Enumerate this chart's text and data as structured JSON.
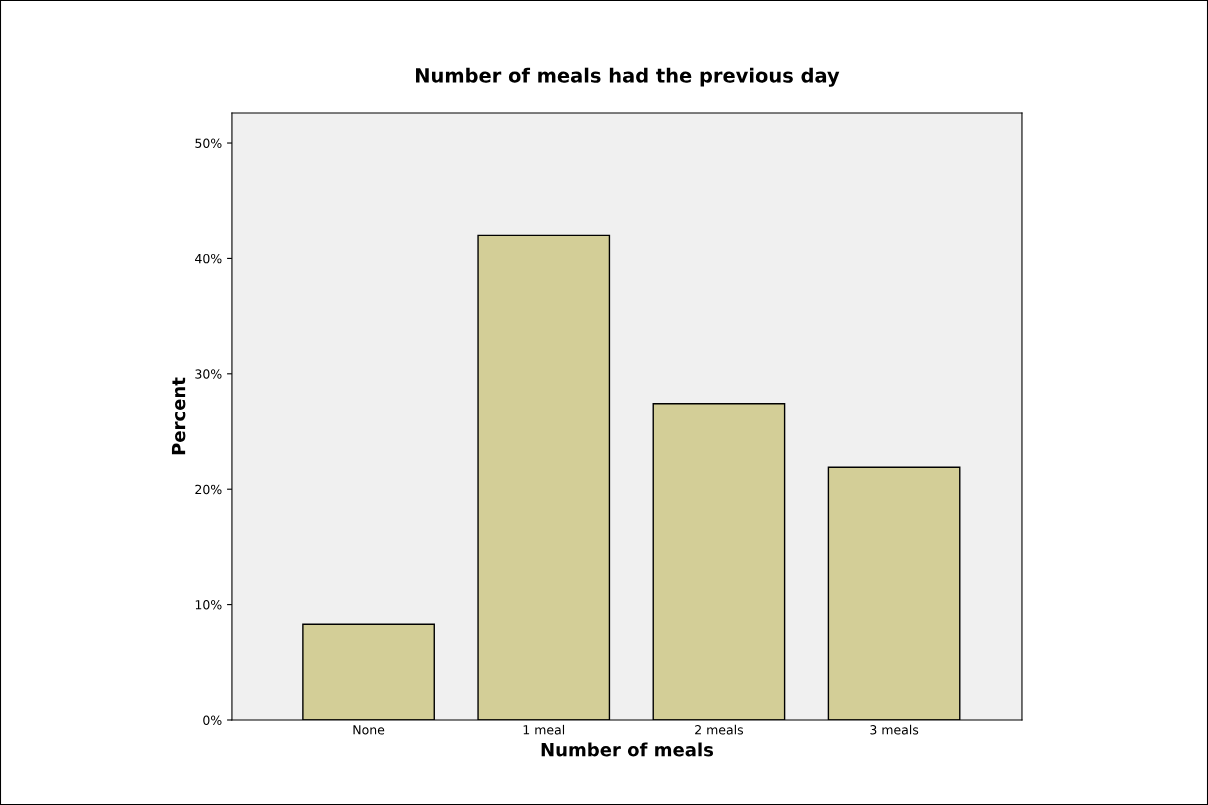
{
  "chart_data": {
    "type": "bar",
    "title": "Number of meals had the previous day",
    "xlabel": "Number of meals",
    "ylabel": "Percent",
    "categories": [
      "None",
      "1 meal",
      "2 meals",
      "3 meals"
    ],
    "values": [
      8.3,
      42.0,
      27.4,
      21.9
    ],
    "color": "#d3ce97",
    "ylim": [
      0,
      52.6
    ],
    "yticks": [
      {
        "value": 0,
        "label": "0%"
      },
      {
        "value": 10,
        "label": "10%"
      },
      {
        "value": 20,
        "label": "20%"
      },
      {
        "value": 30,
        "label": "30%"
      },
      {
        "value": 40,
        "label": "40%"
      },
      {
        "value": 50,
        "label": "50%"
      }
    ],
    "grid": false
  }
}
